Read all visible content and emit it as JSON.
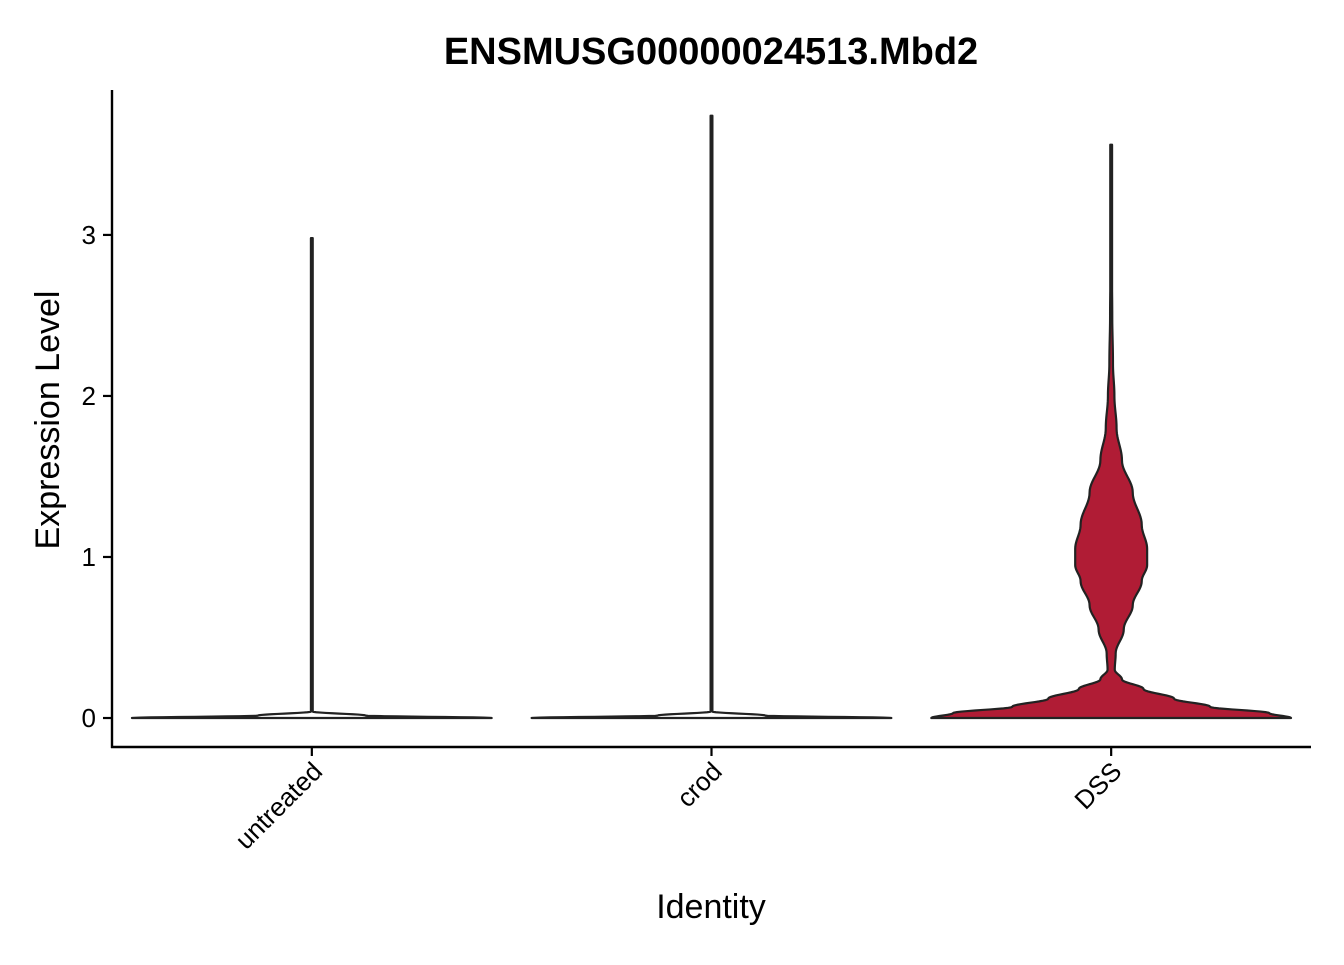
{
  "chart_data": {
    "type": "violin",
    "title": "ENSMUSG00000024513.Mbd2",
    "xlabel": "Identity",
    "ylabel": "Expression Level",
    "categories": [
      "untreated",
      "crod",
      "DSS"
    ],
    "ylim": [
      -0.18,
      3.9
    ],
    "yticks": [
      0,
      1,
      2,
      3
    ],
    "grid": false,
    "legend": "none",
    "fill_colors": {
      "untreated": "#ffffff",
      "crod": "#ffffff",
      "DSS": "#b01c35"
    },
    "outline_color": "#222222",
    "series": [
      {
        "category": "untreated",
        "max": 2.98,
        "density": [
          [
            0,
            1.0
          ],
          [
            0.015,
            0.3
          ],
          [
            0.04,
            0.005
          ],
          [
            0.1,
            0.0
          ],
          [
            2.98,
            0.0
          ]
        ]
      },
      {
        "category": "crod",
        "max": 3.74,
        "density": [
          [
            0,
            1.0
          ],
          [
            0.015,
            0.3
          ],
          [
            0.04,
            0.005
          ],
          [
            0.1,
            0.0
          ],
          [
            3.74,
            0.0
          ]
        ]
      },
      {
        "category": "DSS",
        "max": 3.56,
        "density": [
          [
            0,
            1.0
          ],
          [
            0.03,
            0.88
          ],
          [
            0.07,
            0.55
          ],
          [
            0.12,
            0.35
          ],
          [
            0.18,
            0.18
          ],
          [
            0.24,
            0.06
          ],
          [
            0.3,
            0.02
          ],
          [
            0.4,
            0.025
          ],
          [
            0.55,
            0.07
          ],
          [
            0.7,
            0.12
          ],
          [
            0.85,
            0.17
          ],
          [
            0.95,
            0.2
          ],
          [
            1.05,
            0.2
          ],
          [
            1.2,
            0.17
          ],
          [
            1.4,
            0.12
          ],
          [
            1.6,
            0.06
          ],
          [
            1.8,
            0.03
          ],
          [
            2.0,
            0.018
          ],
          [
            2.2,
            0.01
          ],
          [
            2.5,
            0.006
          ],
          [
            2.8,
            0.004
          ],
          [
            3.2,
            0.003
          ],
          [
            3.56,
            0.002
          ]
        ]
      }
    ]
  }
}
